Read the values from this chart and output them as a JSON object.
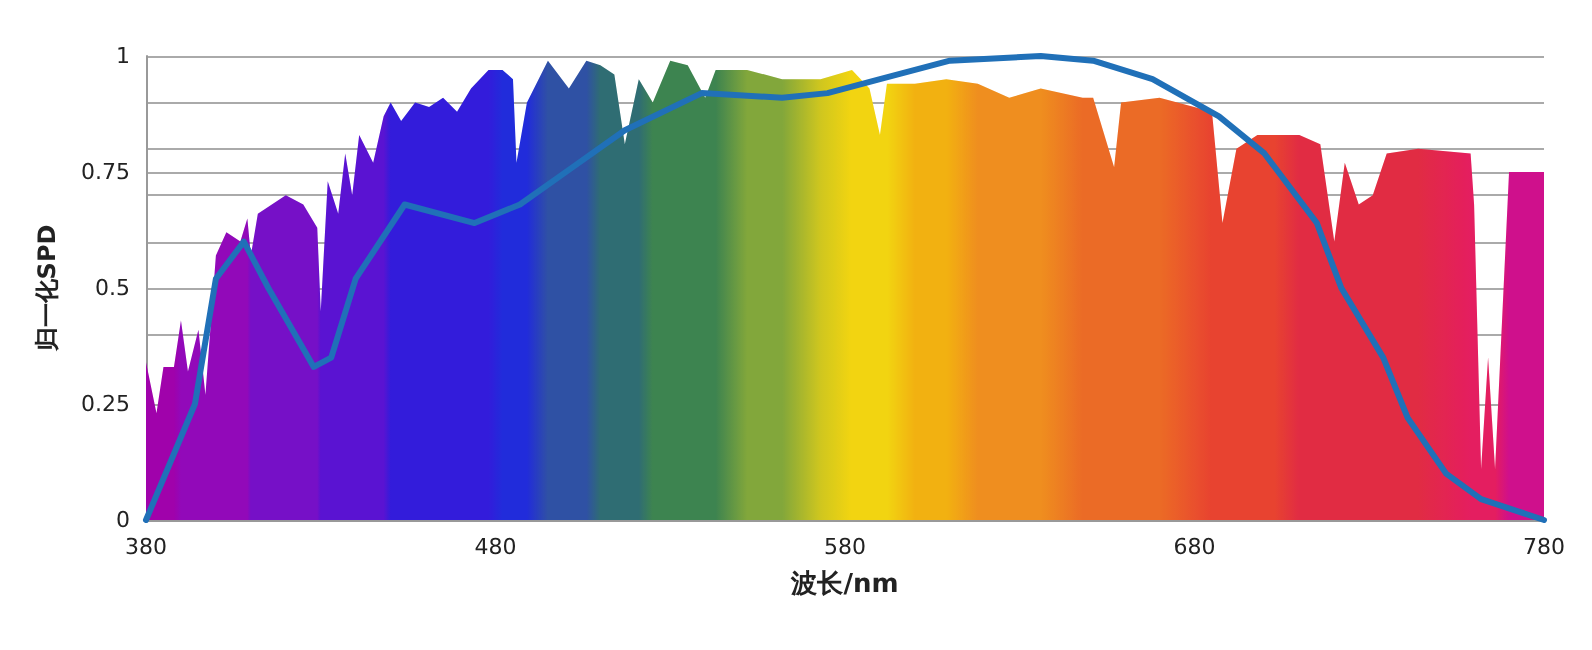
{
  "chart_data": {
    "type": "line",
    "xlabel": "波长/nm",
    "ylabel": "归一化SPD",
    "xlim": [
      380,
      780
    ],
    "xticks": [
      380,
      480,
      580,
      680,
      780
    ],
    "ylim": [
      0,
      1
    ],
    "yticks": [
      0,
      0.25,
      {
        "value": 0.4,
        "label": null
      },
      0.5,
      {
        "value": 0.6,
        "label": null
      },
      {
        "value": 0.7,
        "label": null
      },
      0.75,
      {
        "value": 0.8,
        "label": null
      },
      {
        "value": 0.9,
        "label": null
      },
      1
    ],
    "grid": "y",
    "marker": "none",
    "line_style": "solid",
    "series": [
      {
        "type": "area",
        "x": [
          380,
          383,
          385,
          388,
          390,
          392,
          395,
          397,
          400,
          403,
          407,
          409,
          410,
          412,
          416,
          420,
          425,
          429,
          430,
          432,
          435,
          437,
          439,
          441,
          445,
          448,
          450,
          453,
          457,
          461,
          465,
          469,
          473,
          478,
          482,
          485,
          486,
          489,
          495,
          501,
          506,
          510,
          514,
          517,
          521,
          525,
          530,
          535,
          540,
          543,
          552,
          562,
          573,
          582,
          587,
          590,
          592,
          600,
          609,
          618,
          627,
          636,
          648,
          651,
          657,
          659,
          670,
          685,
          688,
          692,
          698,
          703,
          710,
          716,
          720,
          723,
          727,
          731,
          735,
          744,
          759,
          760,
          762,
          764,
          766,
          770,
          780
        ],
        "values": [
          0.34,
          0.23,
          0.33,
          0.33,
          0.43,
          0.32,
          0.41,
          0.27,
          0.57,
          0.62,
          0.6,
          0.65,
          0.57,
          0.66,
          0.68,
          0.7,
          0.68,
          0.63,
          0.45,
          0.73,
          0.66,
          0.79,
          0.7,
          0.83,
          0.77,
          0.87,
          0.9,
          0.86,
          0.9,
          0.89,
          0.91,
          0.88,
          0.93,
          0.97,
          0.97,
          0.95,
          0.77,
          0.9,
          0.99,
          0.93,
          0.99,
          0.98,
          0.96,
          0.81,
          0.95,
          0.9,
          0.99,
          0.98,
          0.91,
          0.97,
          0.97,
          0.95,
          0.95,
          0.97,
          0.93,
          0.83,
          0.94,
          0.94,
          0.95,
          0.94,
          0.91,
          0.93,
          0.91,
          0.91,
          0.76,
          0.9,
          0.91,
          0.88,
          0.64,
          0.8,
          0.83,
          0.83,
          0.83,
          0.81,
          0.6,
          0.77,
          0.68,
          0.7,
          0.79,
          0.8,
          0.79,
          0.68,
          0.11,
          0.35,
          0.11,
          0.75,
          0.75
        ],
        "colors": [
          "#9a00b0",
          "#9a00b0",
          "#9a00b0",
          "#9a00b0",
          "#8a08c0",
          "#8a08c0",
          "#8a08c0",
          "#8a08c0",
          "#8a08c0",
          "#8a08c0",
          "#8a08c0",
          "#8a08c0",
          "#6a10d0",
          "#6a10d0",
          "#6a10d0",
          "#6a10d0",
          "#6a10d0",
          "#6a10d0",
          "#4a14dc",
          "#4a14dc",
          "#4a14dc",
          "#4a14dc",
          "#4a14dc",
          "#4a14dc",
          "#4a14dc",
          "#4a14dc",
          "#1e1ee6",
          "#1e1ee6",
          "#1e1ee6",
          "#1e1ee6",
          "#1e1ee6",
          "#1e1ee6",
          "#1e1ee6",
          "#1e1ee6",
          "#0a30e6",
          "#0a30e6",
          "#0a30e6",
          "#0a30e6",
          "#1a5aa8",
          "#1a5aa8",
          "#1a5aa8",
          "#1a7a70",
          "#1a7a70",
          "#1a7a70",
          "#1a7a70",
          "#2a9448",
          "#2a9448",
          "#2a9448",
          "#2a9448",
          "#2a9448",
          "#78bc30",
          "#78bc30",
          "#d0e010",
          "#f8f000",
          "#f8f000",
          "#f8f000",
          "#f8f000",
          "#f8c800",
          "#f8c800",
          "#f4a010",
          "#f4a010",
          "#f4a010",
          "#f07818",
          "#f07818",
          "#f07818",
          "#f07818",
          "#f07818",
          "#ec4a24",
          "#ec4a24",
          "#ec4a24",
          "#ec4a24",
          "#ec4a24",
          "#e4303a",
          "#e4303a",
          "#e4303a",
          "#e4303a",
          "#e4303a",
          "#e4303a",
          "#e4303a",
          "#e4303a",
          "#e8205a",
          "#e8205a",
          "#e8205a",
          "#e8205a",
          "#e8205a",
          "#d0108c",
          "#d0108c"
        ]
      },
      {
        "type": "line",
        "color": "#2070b8",
        "x": [
          380,
          394,
          400,
          408,
          415,
          428,
          433,
          440,
          454,
          474,
          487,
          502,
          517,
          539,
          562,
          575,
          590,
          610,
          636,
          651,
          668,
          687,
          700,
          715,
          722,
          734,
          741,
          752,
          762,
          780
        ],
        "values": [
          0,
          0.25,
          0.52,
          0.6,
          0.5,
          0.33,
          0.35,
          0.52,
          0.68,
          0.64,
          0.68,
          0.76,
          0.84,
          0.92,
          0.91,
          0.92,
          0.95,
          0.99,
          1,
          0.99,
          0.95,
          0.87,
          0.79,
          0.64,
          0.5,
          0.35,
          0.22,
          0.1,
          0.045,
          0
        ]
      }
    ]
  }
}
